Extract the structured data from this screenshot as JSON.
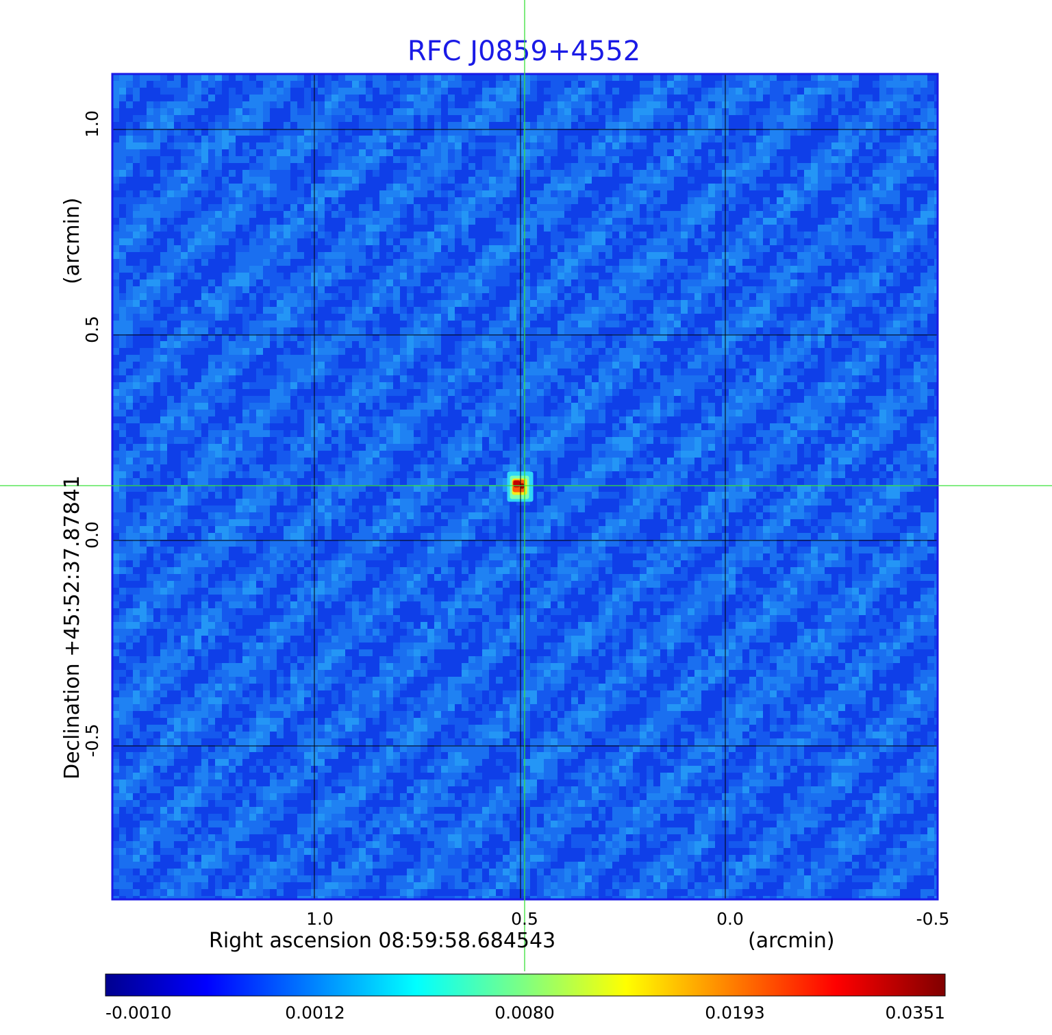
{
  "figure": {
    "title": "RFC J0859+4552",
    "xlabel_left": "Right ascension  08:59:58.684543",
    "xlabel_right": "(arcmin)",
    "ylabel_left": "Declination  +45:52:37.87841",
    "ylabel_right": "(arcmin)"
  },
  "x_ticks": [
    "1.0",
    "0.5",
    "0.0",
    "-0.5"
  ],
  "y_ticks": [
    "1.0",
    "0.5",
    "0.0",
    "-0.5"
  ],
  "colorbar": {
    "labels": [
      "-0.0010",
      "0.0012",
      "0.0080",
      "0.0193",
      "0.0351"
    ],
    "colormap": "jet",
    "colors": [
      "#00008f",
      "#0000ff",
      "#00ffff",
      "#ffff00",
      "#ff0000",
      "#800000"
    ]
  },
  "colors": {
    "title": "#1a1ae6",
    "frame": "#1a1ae6",
    "crosshair": "#39e039",
    "grid": "#000000",
    "background": "#1a6ff0"
  },
  "image": {
    "source_name": "RFC J0859+4552",
    "source_offset_arcmin": {
      "ra": 0.5,
      "dec": 0.13
    },
    "x_range_arcmin": [
      1.49,
      -0.52
    ],
    "y_range_arcmin": [
      -0.87,
      1.13
    ],
    "peak_value": 0.0351
  }
}
